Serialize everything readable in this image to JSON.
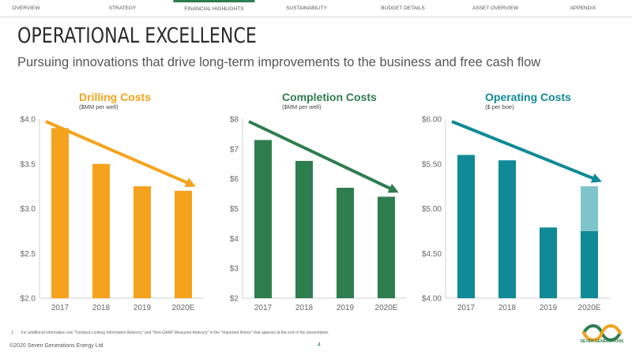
{
  "nav": {
    "items": [
      {
        "label": "OVERVIEW",
        "active": false
      },
      {
        "label": "STRATEGY",
        "active": false
      },
      {
        "label": "FINANCIAL HIGHLIGHTS",
        "active": true
      },
      {
        "label": "SUSTAINABILITY",
        "active": false
      },
      {
        "label": "BUDGET DETAILS",
        "active": false
      },
      {
        "label": "ASSET OVERVIEW",
        "active": false
      },
      {
        "label": "APPENDIX",
        "active": false
      }
    ]
  },
  "header": {
    "title": "OPERATIONAL EXCELLENCE",
    "subtitle": "Pursuing innovations that drive long-term improvements to the business and free cash flow"
  },
  "chart_data": [
    {
      "type": "bar",
      "title": "Drilling Costs",
      "subtitle": "($MM per well)",
      "color": "#f5a31c",
      "categories": [
        "2017",
        "2018",
        "2019",
        "2020E"
      ],
      "values": [
        3.9,
        3.5,
        3.25,
        3.2
      ],
      "ylim": [
        2.0,
        4.0
      ],
      "yticks": [
        2.0,
        2.5,
        3.0,
        3.5,
        4.0
      ],
      "ytick_labels": [
        "$2.0",
        "$2.5",
        "$3.0",
        "$3.5",
        "$4.0"
      ],
      "trend": "decreasing"
    },
    {
      "type": "bar",
      "title": "Completion Costs",
      "subtitle": "($MM per well)",
      "color": "#2e7d4f",
      "categories": [
        "2017",
        "2018",
        "2019",
        "2020E"
      ],
      "values": [
        7.3,
        6.6,
        5.7,
        5.4
      ],
      "ylim": [
        2,
        8
      ],
      "yticks": [
        2,
        3,
        4,
        5,
        6,
        7,
        8
      ],
      "ytick_labels": [
        "$2",
        "$3",
        "$4",
        "$5",
        "$6",
        "$7",
        "$8"
      ],
      "trend": "decreasing"
    },
    {
      "type": "bar",
      "title": "Operating Costs",
      "subtitle": "($ per boe)",
      "color": "#0f8a96",
      "color_light": "#7fc4ca",
      "categories": [
        "2017",
        "2018",
        "2019",
        "2020E"
      ],
      "values": [
        5.6,
        5.54,
        4.79,
        4.75
      ],
      "range_upper": [
        null,
        null,
        null,
        5.25
      ],
      "ylim": [
        4.0,
        6.0
      ],
      "yticks": [
        4.0,
        4.5,
        5.0,
        5.5,
        6.0
      ],
      "ytick_labels": [
        "$4.00",
        "$4.50",
        "$5.00",
        "$5.50",
        "$6.00"
      ],
      "trend": "decreasing"
    }
  ],
  "footer": {
    "footnote_number": "1.",
    "footnote": "For additional information see \"Forward-Looking Information Advisory\" and \"Non-GAAP Measures Advisory\" in the \"Important Notice\" that appears at the end of the presentation.",
    "copyright": "©2020 Seven Generations Energy Ltd",
    "page_number": "4",
    "logo_text": "SEVEN GENERATIONS",
    "logo_color_a": "#2e7d4f",
    "logo_color_b": "#f5a31c"
  }
}
